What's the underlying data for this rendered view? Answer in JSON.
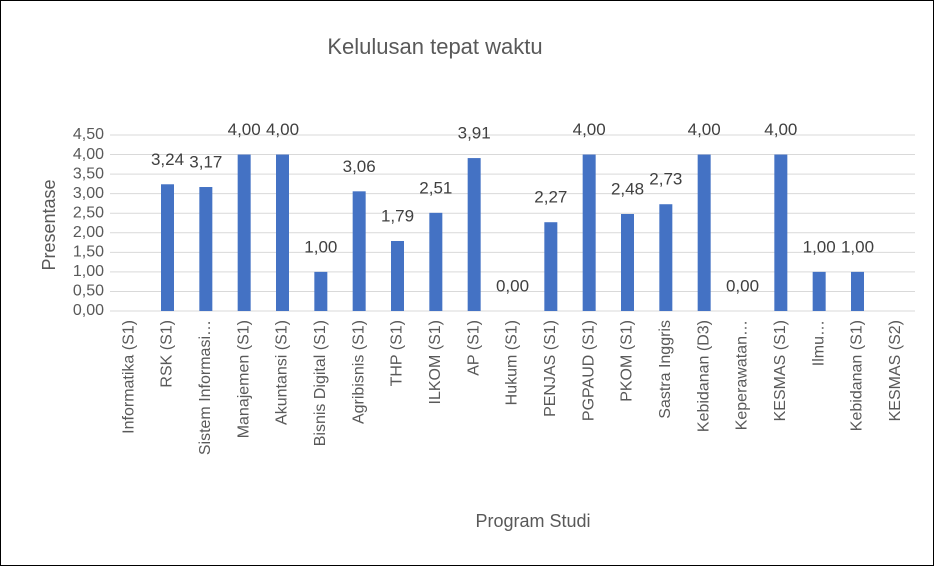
{
  "chart_data": {
    "type": "bar",
    "title": "Kelulusan tepat waktu",
    "x_label": "Program Studi",
    "y_label": "Presentase",
    "categories": [
      "Informatika (S1)",
      "RSK (S1)",
      "Sistem Informasi…",
      "Manajemen (S1)",
      "Akuntansi  (S1)",
      "Bisnis Digital (S1)",
      "Agribisnis  (S1)",
      "THP (S1)",
      "ILKOM (S1)",
      "AP (S1)",
      "Hukum (S1)",
      "PENJAS (S1)",
      "PGPAUD (S1)",
      "PKOM (S1)",
      "Sastra Inggris",
      "Kebidanan  (D3)",
      "Keperawatan…",
      "KESMAS (S1)",
      "Ilmu…",
      "Kebidanan (S1)",
      "KESMAS (S2)"
    ],
    "values": [
      null,
      3.24,
      3.17,
      4.0,
      4.0,
      1.0,
      3.06,
      1.79,
      2.51,
      3.91,
      0.0,
      2.27,
      4.0,
      2.48,
      2.73,
      4.0,
      0.0,
      4.0,
      1.0,
      1.0,
      null
    ],
    "value_labels": [
      null,
      "3,24",
      "3,17",
      "4,00",
      "4,00",
      "1,00",
      "3,06",
      "1,79",
      "2,51",
      "3,91",
      "0,00",
      "2,27",
      "4,00",
      "2,48",
      "2,73",
      "4,00",
      "0,00",
      "4,00",
      "1,00",
      "1,00",
      null
    ],
    "color": "#4472c4",
    "ylim": [
      0,
      4.5
    ],
    "yticks": [
      {
        "value": 0,
        "label": "0,00"
      },
      {
        "value": 0.5,
        "label": "0,50"
      },
      {
        "value": 1,
        "label": "1,00"
      },
      {
        "value": 1.5,
        "label": "1,50"
      },
      {
        "value": 2,
        "label": "2,00"
      },
      {
        "value": 2.5,
        "label": "2,50"
      },
      {
        "value": 3,
        "label": "3,00"
      },
      {
        "value": 3.5,
        "label": "3,50"
      },
      {
        "value": 4,
        "label": "4,00"
      },
      {
        "value": 4.5,
        "label": "4,50"
      }
    ],
    "grid": true
  }
}
